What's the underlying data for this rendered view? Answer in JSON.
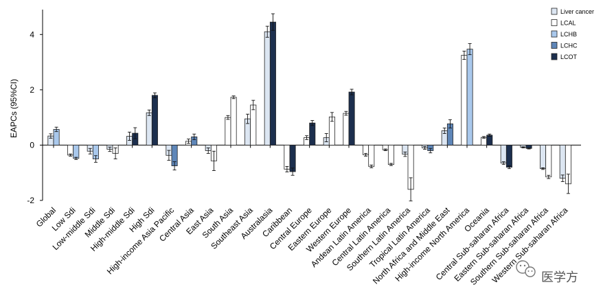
{
  "chart_data": {
    "type": "bar",
    "ylabel": "EAPCs (95%CI)",
    "ylim": [
      -2,
      4.9
    ],
    "yticks": [
      -2,
      0,
      2,
      4
    ],
    "legend_position": "top-right",
    "grid": false,
    "series": [
      {
        "name": "Liver cancer",
        "color": "#dce6f2"
      },
      {
        "name": "LCAL",
        "color": "#ffffff"
      },
      {
        "name": "LCHB",
        "color": "#a9c8ec"
      },
      {
        "name": "LCHC",
        "color": "#5e86b8"
      },
      {
        "name": "LCOT",
        "color": "#1c2f4e"
      }
    ],
    "groups": [
      {
        "category": "Global",
        "bars": [
          {
            "s": 0,
            "v": 0.33,
            "e": 0.08
          },
          {
            "s": 2,
            "v": 0.57,
            "e": 0.08
          }
        ]
      },
      {
        "category": "Low Sdi",
        "bars": [
          {
            "s": 1,
            "v": -0.36,
            "e": 0.04
          },
          {
            "s": 2,
            "v": -0.48,
            "e": 0.04
          }
        ]
      },
      {
        "category": "Low-middle Sdi",
        "bars": [
          {
            "s": 0,
            "v": -0.22,
            "e": 0.1
          },
          {
            "s": 2,
            "v": -0.5,
            "e": 0.12
          }
        ]
      },
      {
        "category": "Middle Sdi",
        "bars": [
          {
            "s": 0,
            "v": -0.15,
            "e": 0.08
          },
          {
            "s": 1,
            "v": -0.3,
            "e": 0.2
          }
        ]
      },
      {
        "category": "High-middle Sdi",
        "bars": [
          {
            "s": 0,
            "v": 0.32,
            "e": 0.15
          },
          {
            "s": 4,
            "v": 0.43,
            "e": 0.2
          }
        ]
      },
      {
        "category": "High Sdi",
        "bars": [
          {
            "s": 0,
            "v": 1.17,
            "e": 0.1
          },
          {
            "s": 4,
            "v": 1.8,
            "e": 0.09
          }
        ]
      },
      {
        "category": "High-income Asia Pacific",
        "bars": [
          {
            "s": 0,
            "v": -0.37,
            "e": 0.18
          },
          {
            "s": 3,
            "v": -0.75,
            "e": 0.15
          }
        ]
      },
      {
        "category": "Central Asia",
        "bars": [
          {
            "s": 1,
            "v": 0.14,
            "e": 0.08
          },
          {
            "s": 3,
            "v": 0.3,
            "e": 0.1
          }
        ]
      },
      {
        "category": "East Asia",
        "bars": [
          {
            "s": 0,
            "v": -0.2,
            "e": 0.1
          },
          {
            "s": 1,
            "v": -0.57,
            "e": 0.35
          }
        ]
      },
      {
        "category": "South Asia",
        "bars": [
          {
            "s": 1,
            "v": 1.0,
            "e": 0.07
          },
          {
            "s": 1,
            "v": 1.73,
            "e": 0.05
          }
        ]
      },
      {
        "category": "Southeast Asia",
        "bars": [
          {
            "s": 0,
            "v": 0.95,
            "e": 0.17
          },
          {
            "s": 1,
            "v": 1.45,
            "e": 0.17
          }
        ]
      },
      {
        "category": "Australasia",
        "bars": [
          {
            "s": 0,
            "v": 4.1,
            "e": 0.2
          },
          {
            "s": 4,
            "v": 4.45,
            "e": 0.3
          }
        ]
      },
      {
        "category": "Caribbean",
        "bars": [
          {
            "s": 1,
            "v": -0.87,
            "e": 0.1
          },
          {
            "s": 4,
            "v": -0.96,
            "e": 0.13
          }
        ]
      },
      {
        "category": "Central Europe",
        "bars": [
          {
            "s": 1,
            "v": 0.27,
            "e": 0.07
          },
          {
            "s": 4,
            "v": 0.8,
            "e": 0.09
          }
        ]
      },
      {
        "category": "Eastern Europe",
        "bars": [
          {
            "s": 0,
            "v": 0.27,
            "e": 0.15
          },
          {
            "s": 1,
            "v": 1.02,
            "e": 0.16
          }
        ]
      },
      {
        "category": "Western Europe",
        "bars": [
          {
            "s": 1,
            "v": 1.15,
            "e": 0.07
          },
          {
            "s": 4,
            "v": 1.92,
            "e": 0.1
          }
        ]
      },
      {
        "category": "Andean Latin America",
        "bars": [
          {
            "s": 1,
            "v": -0.35,
            "e": 0.05
          },
          {
            "s": 1,
            "v": -0.77,
            "e": 0.05
          }
        ]
      },
      {
        "category": "Central Latin America",
        "bars": [
          {
            "s": 1,
            "v": -0.17,
            "e": 0.03
          },
          {
            "s": 1,
            "v": -0.7,
            "e": 0.04
          }
        ]
      },
      {
        "category": "Southern Latin America",
        "bars": [
          {
            "s": 0,
            "v": -0.33,
            "e": 0.08
          },
          {
            "s": 1,
            "v": -1.6,
            "e": 0.42
          }
        ]
      },
      {
        "category": "Tropical Latin America",
        "bars": [
          {
            "s": 0,
            "v": -0.1,
            "e": 0.05
          },
          {
            "s": 3,
            "v": -0.2,
            "e": 0.08
          }
        ]
      },
      {
        "category": "North Africa and Middle East",
        "bars": [
          {
            "s": 0,
            "v": 0.52,
            "e": 0.1
          },
          {
            "s": 3,
            "v": 0.77,
            "e": 0.15
          }
        ]
      },
      {
        "category": "High-income North America",
        "bars": [
          {
            "s": 1,
            "v": 3.25,
            "e": 0.15
          },
          {
            "s": 2,
            "v": 3.47,
            "e": 0.2
          }
        ]
      },
      {
        "category": "Oceania",
        "bars": [
          {
            "s": 1,
            "v": 0.28,
            "e": 0.03
          },
          {
            "s": 4,
            "v": 0.36,
            "e": 0.04
          }
        ]
      },
      {
        "category": "Central Sub-saharan Africa",
        "bars": [
          {
            "s": 0,
            "v": -0.65,
            "e": 0.05
          },
          {
            "s": 4,
            "v": -0.8,
            "e": 0.05
          }
        ]
      },
      {
        "category": "Eastern Sub-saharan Africa",
        "bars": [
          {
            "s": 0,
            "v": -0.08,
            "e": 0.02
          },
          {
            "s": 4,
            "v": -0.12,
            "e": 0.02
          }
        ]
      },
      {
        "category": "Southern Sub-saharan Africa",
        "bars": [
          {
            "s": 0,
            "v": -0.85,
            "e": 0.03
          },
          {
            "s": 1,
            "v": -1.15,
            "e": 0.06
          }
        ]
      },
      {
        "category": "Western Sub-saharan Africa",
        "bars": [
          {
            "s": 0,
            "v": -1.2,
            "e": 0.12
          },
          {
            "s": 1,
            "v": -1.4,
            "e": 0.35
          }
        ]
      }
    ]
  },
  "watermark": {
    "text": "医学方",
    "icon": "wechat-icon"
  }
}
